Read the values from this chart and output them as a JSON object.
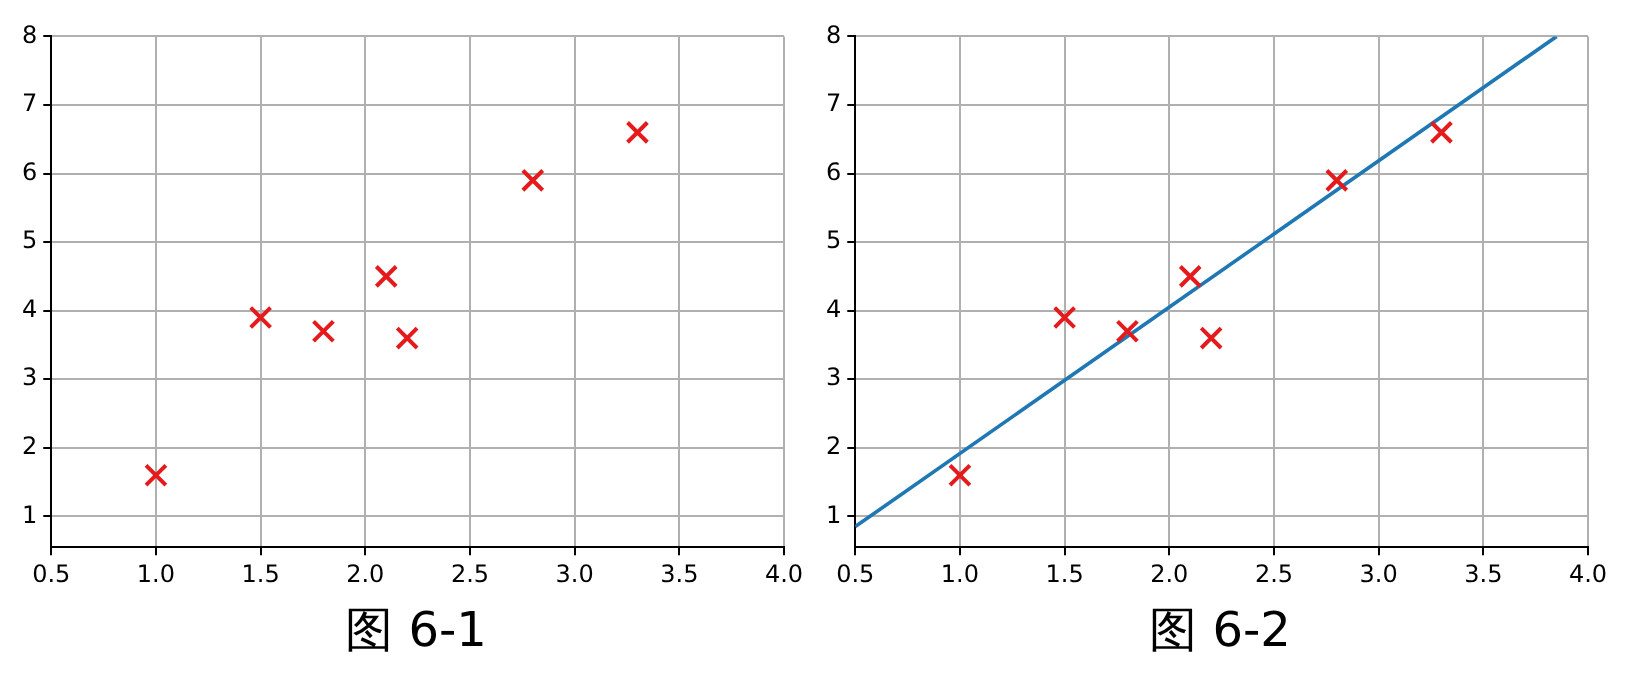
{
  "chart_data": [
    {
      "type": "scatter",
      "x": [
        1.0,
        1.5,
        1.8,
        2.1,
        2.2,
        2.8,
        3.3
      ],
      "values": [
        1.6,
        3.9,
        3.7,
        4.5,
        3.6,
        5.9,
        6.6
      ],
      "color": "#e41a1c",
      "marker": "cross",
      "xlim": [
        0.5,
        4
      ],
      "xticks": [
        0.5,
        {
          "value": 1,
          "label": "1.0"
        },
        1.5,
        {
          "value": 2,
          "label": "2.0"
        },
        2.5,
        {
          "value": 3,
          "label": "3.0"
        },
        3.5,
        {
          "value": 4,
          "label": "4.0"
        }
      ],
      "ylim": [
        0.55,
        8
      ],
      "yticks": [
        1,
        2,
        3,
        4,
        5,
        6,
        7,
        8
      ],
      "grid": true,
      "annotations": [
        "图 6-1"
      ]
    },
    {
      "type": "scatter",
      "series": [
        {
          "type": "scatter",
          "x": [
            1.0,
            1.5,
            1.8,
            2.1,
            2.2,
            2.8,
            3.3
          ],
          "values": [
            1.6,
            3.9,
            3.7,
            4.5,
            3.6,
            5.9,
            6.6
          ],
          "color": "#e41a1c",
          "marker": "cross"
        },
        {
          "type": "line",
          "x": [
            0.5,
            3.85
          ],
          "values": [
            0.85,
            8
          ],
          "color": "#1f77b4",
          "marker": "none"
        }
      ],
      "xlim": [
        0.5,
        4
      ],
      "xticks": [
        0.5,
        {
          "value": 1,
          "label": "1.0"
        },
        1.5,
        {
          "value": 2,
          "label": "2.0"
        },
        2.5,
        {
          "value": 3,
          "label": "3.0"
        },
        3.5,
        {
          "value": 4,
          "label": "4.0"
        }
      ],
      "ylim": [
        0.55,
        8
      ],
      "yticks": [
        1,
        2,
        3,
        4,
        5,
        6,
        7,
        8
      ],
      "grid": true,
      "annotations": [
        "图 6-2"
      ]
    }
  ]
}
